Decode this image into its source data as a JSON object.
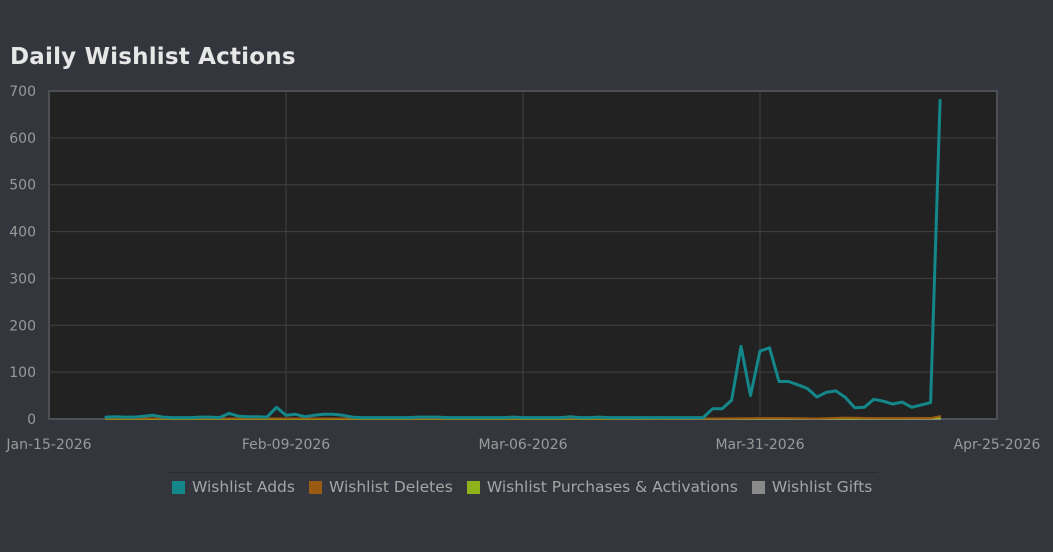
{
  "chart_data": {
    "type": "line",
    "title": "Daily Wishlist Actions",
    "xlabel": "",
    "ylabel": "",
    "x_range": [
      "2026-01-15",
      "2026-04-25"
    ],
    "xticks": [
      "Jan-15-2026",
      "Feb-09-2026",
      "Mar-06-2026",
      "Mar-31-2026",
      "Apr-25-2026"
    ],
    "ylim": [
      0,
      700
    ],
    "yticks": [
      0,
      100,
      200,
      300,
      400,
      500,
      600,
      700
    ],
    "grid": true,
    "legend_position": "bottom",
    "series": [
      {
        "name": "Wishlist Adds",
        "color": "#13878a",
        "points": [
          [
            "2026-01-21",
            4
          ],
          [
            "2026-01-22",
            5
          ],
          [
            "2026-01-23",
            4
          ],
          [
            "2026-01-24",
            4
          ],
          [
            "2026-01-25",
            6
          ],
          [
            "2026-01-26",
            8
          ],
          [
            "2026-01-27",
            4
          ],
          [
            "2026-01-28",
            3
          ],
          [
            "2026-01-29",
            3
          ],
          [
            "2026-01-30",
            3
          ],
          [
            "2026-01-31",
            4
          ],
          [
            "2026-02-01",
            4
          ],
          [
            "2026-02-02",
            3
          ],
          [
            "2026-02-03",
            12
          ],
          [
            "2026-02-04",
            6
          ],
          [
            "2026-02-05",
            5
          ],
          [
            "2026-02-06",
            5
          ],
          [
            "2026-02-07",
            4
          ],
          [
            "2026-02-08",
            25
          ],
          [
            "2026-02-09",
            8
          ],
          [
            "2026-02-10",
            10
          ],
          [
            "2026-02-11",
            5
          ],
          [
            "2026-02-12",
            8
          ],
          [
            "2026-02-13",
            10
          ],
          [
            "2026-02-14",
            10
          ],
          [
            "2026-02-15",
            8
          ],
          [
            "2026-02-16",
            4
          ],
          [
            "2026-02-17",
            3
          ],
          [
            "2026-02-18",
            3
          ],
          [
            "2026-02-19",
            3
          ],
          [
            "2026-02-20",
            3
          ],
          [
            "2026-02-21",
            3
          ],
          [
            "2026-02-22",
            3
          ],
          [
            "2026-02-23",
            4
          ],
          [
            "2026-02-24",
            4
          ],
          [
            "2026-02-25",
            4
          ],
          [
            "2026-02-26",
            3
          ],
          [
            "2026-02-27",
            3
          ],
          [
            "2026-02-28",
            3
          ],
          [
            "2026-03-01",
            3
          ],
          [
            "2026-03-02",
            3
          ],
          [
            "2026-03-03",
            3
          ],
          [
            "2026-03-04",
            3
          ],
          [
            "2026-03-05",
            4
          ],
          [
            "2026-03-06",
            3
          ],
          [
            "2026-03-07",
            3
          ],
          [
            "2026-03-08",
            3
          ],
          [
            "2026-03-09",
            3
          ],
          [
            "2026-03-10",
            3
          ],
          [
            "2026-03-11",
            5
          ],
          [
            "2026-03-12",
            3
          ],
          [
            "2026-03-13",
            3
          ],
          [
            "2026-03-14",
            4
          ],
          [
            "2026-03-15",
            3
          ],
          [
            "2026-03-16",
            3
          ],
          [
            "2026-03-17",
            3
          ],
          [
            "2026-03-18",
            3
          ],
          [
            "2026-03-19",
            3
          ],
          [
            "2026-03-20",
            3
          ],
          [
            "2026-03-21",
            3
          ],
          [
            "2026-03-22",
            3
          ],
          [
            "2026-03-23",
            3
          ],
          [
            "2026-03-24",
            3
          ],
          [
            "2026-03-25",
            3
          ],
          [
            "2026-03-26",
            22
          ],
          [
            "2026-03-27",
            22
          ],
          [
            "2026-03-28",
            40
          ],
          [
            "2026-03-29",
            155
          ],
          [
            "2026-03-30",
            50
          ],
          [
            "2026-03-31",
            145
          ],
          [
            "2026-04-01",
            152
          ],
          [
            "2026-04-02",
            80
          ],
          [
            "2026-04-03",
            80
          ],
          [
            "2026-04-04",
            73
          ],
          [
            "2026-04-05",
            65
          ],
          [
            "2026-04-06",
            47
          ],
          [
            "2026-04-07",
            57
          ],
          [
            "2026-04-08",
            60
          ],
          [
            "2026-04-09",
            46
          ],
          [
            "2026-04-10",
            24
          ],
          [
            "2026-04-11",
            25
          ],
          [
            "2026-04-12",
            42
          ],
          [
            "2026-04-13",
            38
          ],
          [
            "2026-04-14",
            32
          ],
          [
            "2026-04-15",
            36
          ],
          [
            "2026-04-16",
            25
          ],
          [
            "2026-04-17",
            30
          ],
          [
            "2026-04-18",
            35
          ],
          [
            "2026-04-19",
            680
          ]
        ]
      },
      {
        "name": "Wishlist Deletes",
        "color": "#9a5a12",
        "points": [
          [
            "2026-01-21",
            1
          ],
          [
            "2026-02-01",
            1
          ],
          [
            "2026-02-15",
            1
          ],
          [
            "2026-03-01",
            1
          ],
          [
            "2026-03-15",
            1
          ],
          [
            "2026-03-26",
            1
          ],
          [
            "2026-03-31",
            2
          ],
          [
            "2026-04-03",
            2
          ],
          [
            "2026-04-06",
            1
          ],
          [
            "2026-04-09",
            3
          ],
          [
            "2026-04-12",
            2
          ],
          [
            "2026-04-15",
            2
          ],
          [
            "2026-04-18",
            2
          ],
          [
            "2026-04-19",
            6
          ]
        ]
      },
      {
        "name": "Wishlist Purchases & Activations",
        "color": "#8fb21b",
        "points": [
          [
            "2026-01-21",
            0
          ],
          [
            "2026-02-15",
            0
          ],
          [
            "2026-03-15",
            0
          ],
          [
            "2026-04-01",
            1
          ],
          [
            "2026-04-10",
            1
          ],
          [
            "2026-04-19",
            2
          ]
        ]
      },
      {
        "name": "Wishlist Gifts",
        "color": "#8a8a8a",
        "points": [
          [
            "2026-01-21",
            0
          ],
          [
            "2026-04-19",
            0
          ]
        ]
      }
    ]
  }
}
